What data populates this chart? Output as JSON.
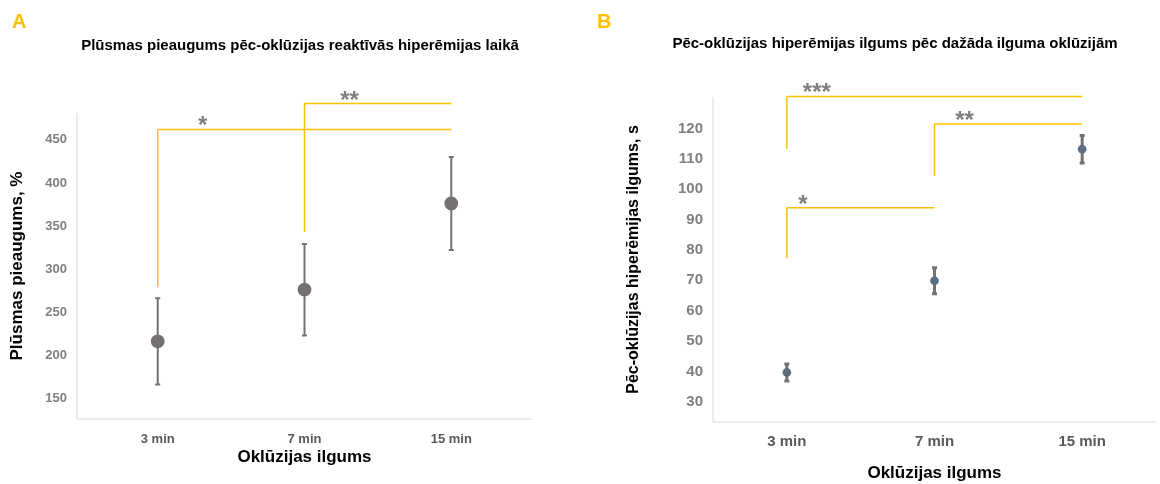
{
  "chart_data": [
    {
      "type": "scatter",
      "title": "Plūsmas pieaugums pēc-oklūzijas reaktīvās hiperēmijas laikā",
      "xlabel": "Oklūzijas ilgums",
      "ylabel": "Plūsmas pieaugums, %",
      "categories": [
        "3 min",
        "7 min",
        "15 min"
      ],
      "values": [
        215,
        275,
        375
      ],
      "errors": [
        50,
        53,
        54
      ],
      "color": "#767171",
      "marker": "circle",
      "ylim": [
        125,
        480
      ],
      "yticks": [
        150,
        200,
        250,
        300,
        350,
        400,
        450
      ],
      "annotations": [
        "A",
        "*",
        "**"
      ]
    },
    {
      "type": "scatter",
      "title": "Pēc-oklūzijas hiperēmijas ilgums pēc dažāda ilguma oklūzijām",
      "xlabel": "Oklūzijas ilgums",
      "ylabel": "Pēc-oklūzijas hiperēmijas ilgums, s",
      "categories": [
        "3 min",
        "7 min",
        "15 min"
      ],
      "values": [
        39.3,
        69.5,
        112.8
      ],
      "errors": [
        2.8,
        4.3,
        4.5
      ],
      "color": "#5b6f80",
      "marker": "circle",
      "ylim": [
        23,
        130
      ],
      "yticks": [
        30,
        40,
        50,
        60,
        70,
        80,
        90,
        100,
        110,
        120
      ],
      "annotations": [
        "B",
        "***",
        "**",
        "*"
      ]
    }
  ]
}
